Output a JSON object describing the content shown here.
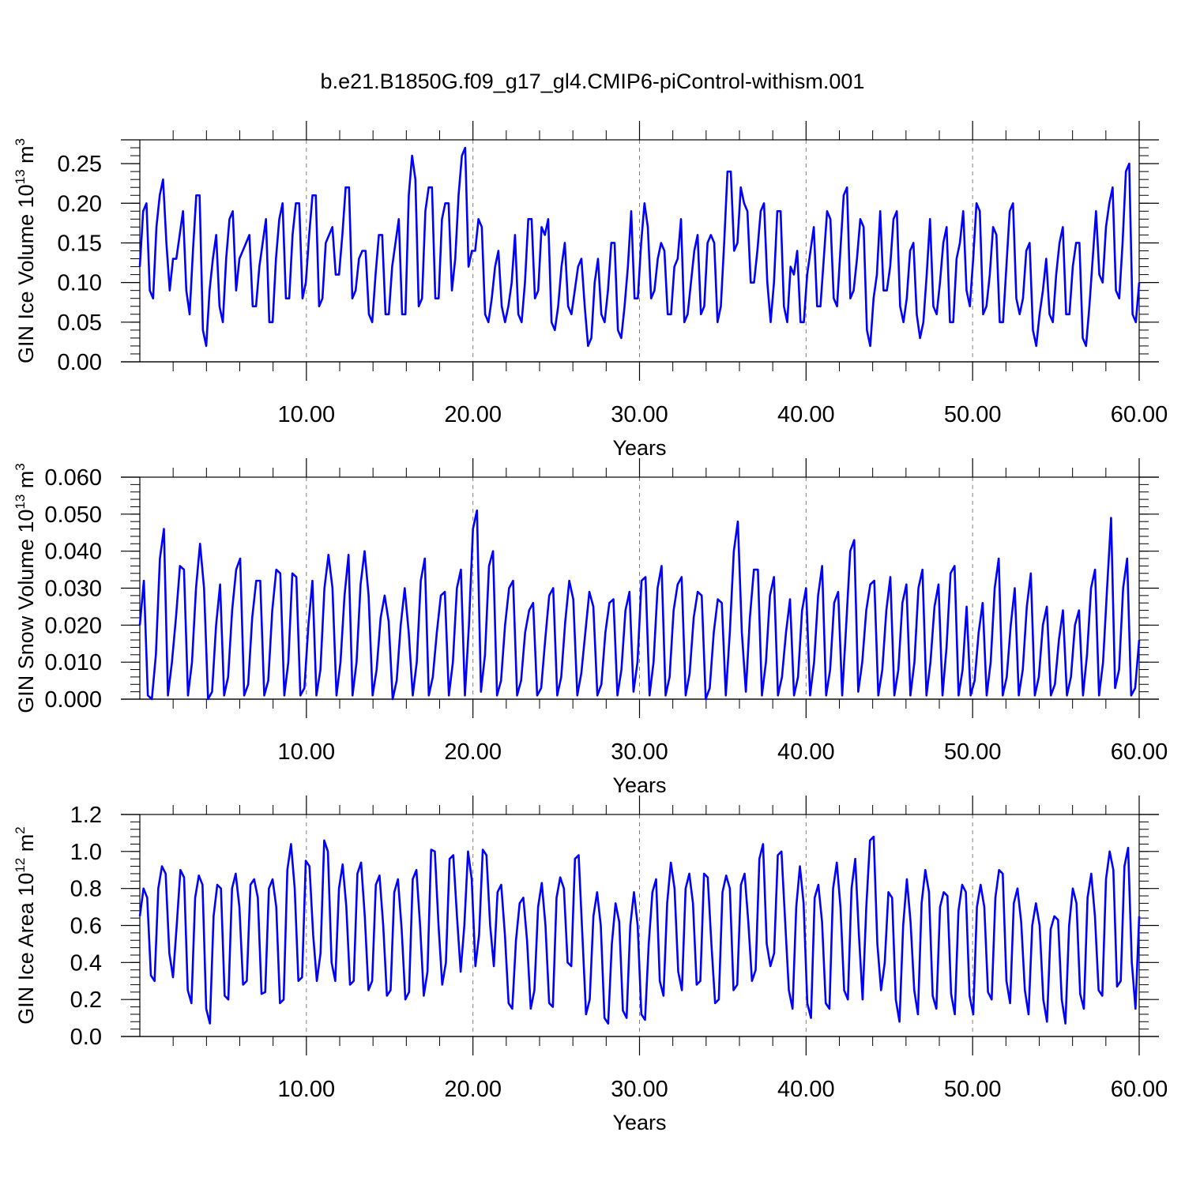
{
  "title": "b.e21.B1850G.f09_g17_gl4.CMIP6-piControl-withism.001",
  "colors": {
    "line": "#0000ff",
    "axis": "#000000",
    "grid": "#7f7f7f"
  },
  "chart_data": [
    {
      "type": "line",
      "ylabel_main": "GIN Ice Volume 10",
      "ylabel_exp": "13",
      "ylabel_unit": " m",
      "ylabel_unit_exp": "3",
      "xlabel": "Years",
      "xlim": [
        0,
        60
      ],
      "ylim": [
        0,
        0.28
      ],
      "xticks": [
        10,
        20,
        30,
        40,
        50,
        60
      ],
      "xtick_labels": [
        "10.00",
        "20.00",
        "30.00",
        "40.00",
        "50.00",
        "60.00"
      ],
      "yticks": [
        0,
        0.05,
        0.1,
        0.15,
        0.2,
        0.25
      ],
      "ytick_labels": [
        "0.00",
        "0.05",
        "0.10",
        "0.15",
        "0.20",
        "0.25"
      ],
      "grid": "dashed vertical at major x ticks",
      "series": [
        {
          "values": [
            0.12,
            0.19,
            0.2,
            0.09,
            0.08,
            0.17,
            0.21,
            0.23,
            0.15,
            0.09,
            0.13,
            0.13,
            0.16,
            0.19,
            0.09,
            0.06,
            0.14,
            0.21,
            0.21,
            0.04,
            0.02,
            0.09,
            0.13,
            0.16,
            0.07,
            0.05,
            0.13,
            0.18,
            0.19,
            0.09,
            0.13,
            0.14,
            0.15,
            0.16,
            0.07,
            0.07,
            0.12,
            0.15,
            0.18,
            0.05,
            0.05,
            0.13,
            0.18,
            0.2,
            0.08,
            0.08,
            0.16,
            0.2,
            0.2,
            0.08,
            0.1,
            0.16,
            0.21,
            0.21,
            0.07,
            0.08,
            0.15,
            0.16,
            0.17,
            0.11,
            0.11,
            0.16,
            0.22,
            0.22,
            0.08,
            0.09,
            0.13,
            0.14,
            0.14,
            0.06,
            0.05,
            0.11,
            0.16,
            0.16,
            0.06,
            0.06,
            0.12,
            0.15,
            0.18,
            0.06,
            0.06,
            0.21,
            0.26,
            0.23,
            0.07,
            0.08,
            0.19,
            0.22,
            0.22,
            0.08,
            0.08,
            0.18,
            0.2,
            0.2,
            0.09,
            0.13,
            0.21,
            0.26,
            0.27,
            0.12,
            0.14,
            0.14,
            0.18,
            0.17,
            0.06,
            0.05,
            0.08,
            0.12,
            0.14,
            0.07,
            0.05,
            0.07,
            0.1,
            0.16,
            0.06,
            0.05,
            0.1,
            0.18,
            0.18,
            0.08,
            0.09,
            0.17,
            0.16,
            0.18,
            0.05,
            0.04,
            0.07,
            0.12,
            0.15,
            0.07,
            0.06,
            0.09,
            0.12,
            0.13,
            0.07,
            0.02,
            0.03,
            0.1,
            0.13,
            0.06,
            0.05,
            0.09,
            0.15,
            0.15,
            0.04,
            0.03,
            0.07,
            0.12,
            0.19,
            0.08,
            0.08,
            0.15,
            0.2,
            0.17,
            0.08,
            0.09,
            0.13,
            0.15,
            0.14,
            0.06,
            0.06,
            0.12,
            0.13,
            0.18,
            0.05,
            0.06,
            0.1,
            0.14,
            0.16,
            0.06,
            0.07,
            0.15,
            0.16,
            0.15,
            0.05,
            0.07,
            0.15,
            0.24,
            0.24,
            0.14,
            0.15,
            0.22,
            0.2,
            0.19,
            0.1,
            0.1,
            0.14,
            0.19,
            0.2,
            0.1,
            0.05,
            0.1,
            0.19,
            0.19,
            0.07,
            0.05,
            0.12,
            0.11,
            0.14,
            0.05,
            0.05,
            0.11,
            0.14,
            0.17,
            0.07,
            0.07,
            0.13,
            0.19,
            0.18,
            0.08,
            0.07,
            0.14,
            0.21,
            0.22,
            0.08,
            0.09,
            0.13,
            0.18,
            0.17,
            0.04,
            0.02,
            0.08,
            0.11,
            0.19,
            0.09,
            0.09,
            0.12,
            0.18,
            0.19,
            0.07,
            0.05,
            0.08,
            0.14,
            0.15,
            0.06,
            0.03,
            0.05,
            0.11,
            0.18,
            0.07,
            0.06,
            0.1,
            0.15,
            0.17,
            0.05,
            0.05,
            0.13,
            0.15,
            0.19,
            0.09,
            0.07,
            0.13,
            0.2,
            0.19,
            0.06,
            0.07,
            0.11,
            0.17,
            0.16,
            0.05,
            0.05,
            0.12,
            0.19,
            0.2,
            0.08,
            0.06,
            0.08,
            0.14,
            0.15,
            0.04,
            0.02,
            0.06,
            0.09,
            0.13,
            0.06,
            0.05,
            0.11,
            0.15,
            0.17,
            0.06,
            0.06,
            0.12,
            0.15,
            0.15,
            0.03,
            0.02,
            0.07,
            0.13,
            0.19,
            0.11,
            0.1,
            0.17,
            0.2,
            0.22,
            0.09,
            0.08,
            0.15,
            0.24,
            0.25,
            0.06,
            0.05,
            0.1
          ]
        }
      ]
    },
    {
      "type": "line",
      "ylabel_main": "GIN Snow Volume 10",
      "ylabel_exp": "13",
      "ylabel_unit": " m",
      "ylabel_unit_exp": "3",
      "xlabel": "Years",
      "xlim": [
        0,
        60
      ],
      "ylim": [
        0,
        0.06
      ],
      "xticks": [
        10,
        20,
        30,
        40,
        50,
        60
      ],
      "xtick_labels": [
        "10.00",
        "20.00",
        "30.00",
        "40.00",
        "50.00",
        "60.00"
      ],
      "yticks": [
        0,
        0.01,
        0.02,
        0.03,
        0.04,
        0.05,
        0.06
      ],
      "ytick_labels": [
        "0.000",
        "0.010",
        "0.020",
        "0.030",
        "0.040",
        "0.050",
        "0.060"
      ],
      "grid": "dashed vertical at major x ticks",
      "series": [
        {
          "values": [
            0.02,
            0.032,
            0.001,
            0.0,
            0.012,
            0.038,
            0.046,
            0.001,
            0.01,
            0.022,
            0.036,
            0.035,
            0.001,
            0.01,
            0.03,
            0.042,
            0.03,
            0.0,
            0.002,
            0.02,
            0.031,
            0.001,
            0.006,
            0.024,
            0.035,
            0.038,
            0.001,
            0.004,
            0.022,
            0.032,
            0.032,
            0.001,
            0.005,
            0.024,
            0.035,
            0.034,
            0.001,
            0.01,
            0.034,
            0.033,
            0.001,
            0.003,
            0.02,
            0.032,
            0.001,
            0.008,
            0.03,
            0.039,
            0.03,
            0.001,
            0.01,
            0.028,
            0.039,
            0.001,
            0.01,
            0.031,
            0.04,
            0.028,
            0.001,
            0.008,
            0.022,
            0.028,
            0.021,
            0.0,
            0.005,
            0.02,
            0.03,
            0.018,
            0.001,
            0.01,
            0.032,
            0.038,
            0.001,
            0.006,
            0.018,
            0.028,
            0.029,
            0.001,
            0.01,
            0.03,
            0.035,
            0.001,
            0.02,
            0.046,
            0.051,
            0.002,
            0.012,
            0.036,
            0.04,
            0.001,
            0.005,
            0.02,
            0.03,
            0.032,
            0.001,
            0.005,
            0.018,
            0.024,
            0.026,
            0.001,
            0.003,
            0.016,
            0.028,
            0.03,
            0.001,
            0.006,
            0.021,
            0.032,
            0.027,
            0.001,
            0.007,
            0.018,
            0.029,
            0.025,
            0.001,
            0.004,
            0.018,
            0.026,
            0.027,
            0.001,
            0.008,
            0.024,
            0.029,
            0.002,
            0.01,
            0.032,
            0.033,
            0.001,
            0.01,
            0.03,
            0.036,
            0.001,
            0.006,
            0.024,
            0.031,
            0.033,
            0.001,
            0.007,
            0.022,
            0.029,
            0.028,
            0.0,
            0.003,
            0.018,
            0.027,
            0.026,
            0.001,
            0.018,
            0.04,
            0.048,
            0.018,
            0.002,
            0.022,
            0.035,
            0.035,
            0.001,
            0.01,
            0.028,
            0.033,
            0.001,
            0.006,
            0.018,
            0.027,
            0.001,
            0.006,
            0.024,
            0.03,
            0.001,
            0.01,
            0.028,
            0.036,
            0.001,
            0.008,
            0.026,
            0.029,
            0.001,
            0.02,
            0.04,
            0.043,
            0.002,
            0.01,
            0.024,
            0.031,
            0.032,
            0.001,
            0.008,
            0.024,
            0.033,
            0.001,
            0.008,
            0.026,
            0.031,
            0.001,
            0.01,
            0.03,
            0.035,
            0.001,
            0.01,
            0.025,
            0.031,
            0.001,
            0.014,
            0.034,
            0.036,
            0.001,
            0.008,
            0.025,
            0.001,
            0.005,
            0.018,
            0.026,
            0.001,
            0.01,
            0.03,
            0.038,
            0.001,
            0.006,
            0.02,
            0.03,
            0.001,
            0.008,
            0.025,
            0.034,
            0.001,
            0.006,
            0.02,
            0.025,
            0.001,
            0.004,
            0.016,
            0.024,
            0.001,
            0.006,
            0.02,
            0.024,
            0.001,
            0.012,
            0.03,
            0.035,
            0.001,
            0.01,
            0.03,
            0.049,
            0.003,
            0.008,
            0.03,
            0.038,
            0.001,
            0.003,
            0.016
          ]
        }
      ]
    },
    {
      "type": "line",
      "ylabel_main": "GIN Ice Area 10",
      "ylabel_exp": "12",
      "ylabel_unit": " m",
      "ylabel_unit_exp": "2",
      "xlabel": "Years",
      "xlim": [
        0,
        60
      ],
      "ylim": [
        0,
        1.2
      ],
      "xticks": [
        10,
        20,
        30,
        40,
        50,
        60
      ],
      "xtick_labels": [
        "10.00",
        "20.00",
        "30.00",
        "40.00",
        "50.00",
        "60.00"
      ],
      "yticks": [
        0,
        0.2,
        0.4,
        0.6,
        0.8,
        1.0,
        1.2
      ],
      "ytick_labels": [
        "0.0",
        "0.2",
        "0.4",
        "0.6",
        "0.8",
        "1.0",
        "1.2"
      ],
      "grid": "dashed vertical at major x ticks",
      "series": [
        {
          "values": [
            0.65,
            0.8,
            0.75,
            0.33,
            0.3,
            0.8,
            0.92,
            0.88,
            0.45,
            0.32,
            0.6,
            0.9,
            0.86,
            0.25,
            0.18,
            0.75,
            0.87,
            0.82,
            0.15,
            0.07,
            0.65,
            0.82,
            0.8,
            0.22,
            0.2,
            0.8,
            0.88,
            0.7,
            0.28,
            0.3,
            0.82,
            0.85,
            0.75,
            0.23,
            0.24,
            0.8,
            0.85,
            0.7,
            0.18,
            0.2,
            0.9,
            1.04,
            0.8,
            0.3,
            0.32,
            0.95,
            0.92,
            0.55,
            0.3,
            0.45,
            1.06,
            1.0,
            0.4,
            0.3,
            0.8,
            0.93,
            0.7,
            0.28,
            0.3,
            0.88,
            0.94,
            0.65,
            0.25,
            0.3,
            0.82,
            0.87,
            0.6,
            0.22,
            0.25,
            0.78,
            0.85,
            0.58,
            0.2,
            0.24,
            0.85,
            0.9,
            0.6,
            0.22,
            0.35,
            1.01,
            1.0,
            0.6,
            0.28,
            0.4,
            0.96,
            0.98,
            0.65,
            0.35,
            0.6,
            1.0,
            0.85,
            0.38,
            0.55,
            1.01,
            0.98,
            0.6,
            0.38,
            0.78,
            0.82,
            0.55,
            0.18,
            0.15,
            0.52,
            0.72,
            0.75,
            0.52,
            0.15,
            0.25,
            0.7,
            0.83,
            0.6,
            0.18,
            0.16,
            0.75,
            0.86,
            0.8,
            0.4,
            0.38,
            0.96,
            0.98,
            0.55,
            0.12,
            0.2,
            0.65,
            0.78,
            0.6,
            0.1,
            0.07,
            0.5,
            0.72,
            0.62,
            0.14,
            0.1,
            0.6,
            0.78,
            0.6,
            0.12,
            0.09,
            0.5,
            0.78,
            0.85,
            0.3,
            0.22,
            0.72,
            0.94,
            0.8,
            0.35,
            0.25,
            0.8,
            0.88,
            0.72,
            0.28,
            0.3,
            0.88,
            0.86,
            0.5,
            0.18,
            0.2,
            0.78,
            0.87,
            0.8,
            0.25,
            0.28,
            0.82,
            0.88,
            0.62,
            0.3,
            0.36,
            0.96,
            1.04,
            0.5,
            0.38,
            0.45,
            0.98,
            1.0,
            0.62,
            0.25,
            0.15,
            0.7,
            0.92,
            0.72,
            0.18,
            0.1,
            0.75,
            0.82,
            0.62,
            0.18,
            0.15,
            0.8,
            0.94,
            0.7,
            0.25,
            0.2,
            0.8,
            0.96,
            0.55,
            0.2,
            0.7,
            1.06,
            1.08,
            0.5,
            0.25,
            0.4,
            0.78,
            0.75,
            0.2,
            0.08,
            0.6,
            0.85,
            0.62,
            0.25,
            0.12,
            0.72,
            0.9,
            0.78,
            0.22,
            0.15,
            0.7,
            0.78,
            0.76,
            0.23,
            0.12,
            0.68,
            0.82,
            0.78,
            0.22,
            0.12,
            0.7,
            0.82,
            0.7,
            0.24,
            0.2,
            0.75,
            0.9,
            0.88,
            0.3,
            0.18,
            0.72,
            0.8,
            0.62,
            0.25,
            0.12,
            0.6,
            0.72,
            0.6,
            0.2,
            0.08,
            0.58,
            0.65,
            0.63,
            0.2,
            0.07,
            0.6,
            0.8,
            0.72,
            0.23,
            0.15,
            0.75,
            0.88,
            0.65,
            0.25,
            0.22,
            0.85,
            1.0,
            0.9,
            0.27,
            0.3,
            0.92,
            1.02,
            0.4,
            0.15,
            0.65
          ]
        }
      ]
    }
  ]
}
